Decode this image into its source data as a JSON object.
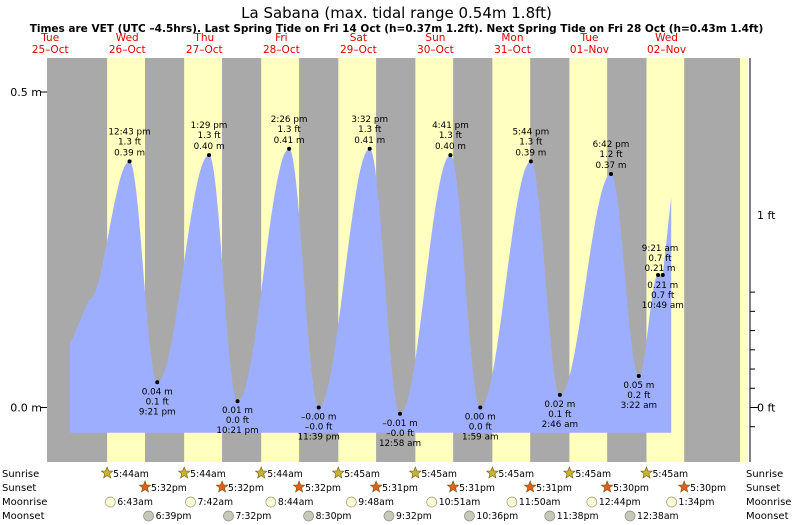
{
  "title": "La Sabana (max. tidal range 0.54m 1.8ft)",
  "subtitle": "Times are VET (UTC –4.5hrs). Last Spring Tide on Fri 14 Oct (h=0.37m 1.2ft). Next Spring Tide on Fri 28 Oct (h=0.43m 1.4ft)",
  "days": [
    {
      "dow": "Tue",
      "date": "25–Oct"
    },
    {
      "dow": "Wed",
      "date": "26–Oct"
    },
    {
      "dow": "Thu",
      "date": "27–Oct"
    },
    {
      "dow": "Fri",
      "date": "28–Oct"
    },
    {
      "dow": "Sat",
      "date": "29–Oct"
    },
    {
      "dow": "Sun",
      "date": "30–Oct"
    },
    {
      "dow": "Mon",
      "date": "31–Oct"
    },
    {
      "dow": "Tue",
      "date": "01–Nov"
    },
    {
      "dow": "Wed",
      "date": "02–Nov"
    }
  ],
  "axis_left_ticks": [
    "0.5 m",
    "0.0 m"
  ],
  "axis_right_ticks": [
    "1 ft",
    "0 ft"
  ],
  "row_labels": {
    "sunrise": "Sunrise",
    "sunset": "Sunset",
    "moonrise": "Moonrise",
    "moonset": "Moonset"
  },
  "colors": {
    "night": "#a9a9a9",
    "day": "#ffffc0",
    "tide": "#9eaefe",
    "day_label": "#e00000",
    "sun_star": "#c8b432",
    "sunset_star": "#e06020",
    "moon": "#fbfbd2"
  },
  "chart_data": {
    "type": "area",
    "title": "La Sabana (max. tidal range 0.54m 1.8ft)",
    "x_unit": "hours from 00:00 Tue 25-Oct",
    "ylim": [
      -0.07,
      0.56
    ],
    "y_unit": "m",
    "extremes": [
      {
        "t": 36.72,
        "h": 0.39,
        "time": "12:43 pm",
        "ft": "1.3 ft",
        "m": "0.39 m",
        "kind": "high"
      },
      {
        "t": 45.35,
        "h": 0.04,
        "time": "9:21 pm",
        "ft": "0.1 ft",
        "m": "0.04 m",
        "kind": "low"
      },
      {
        "t": 61.48,
        "h": 0.4,
        "time": "1:29 pm",
        "ft": "1.3 ft",
        "m": "0.40 m",
        "kind": "high"
      },
      {
        "t": 70.35,
        "h": 0.01,
        "time": "10:21 pm",
        "ft": "0.0 ft",
        "m": "0.01 m",
        "kind": "low"
      },
      {
        "t": 86.43,
        "h": 0.41,
        "time": "2:26 pm",
        "ft": "1.3 ft",
        "m": "0.41 m",
        "kind": "high"
      },
      {
        "t": 95.65,
        "h": -0.0,
        "time": "11:39 pm",
        "ft": "–0.0 ft",
        "m": "–0.00 m",
        "kind": "low"
      },
      {
        "t": 111.53,
        "h": 0.41,
        "time": "3:32 pm",
        "ft": "1.3 ft",
        "m": "0.41 m",
        "kind": "high"
      },
      {
        "t": 120.97,
        "h": -0.01,
        "time": "12:58 am",
        "ft": "–0.0 ft",
        "m": "–0.01 m",
        "kind": "low"
      },
      {
        "t": 136.68,
        "h": 0.4,
        "time": "4:41 pm",
        "ft": "1.3 ft",
        "m": "0.40 m",
        "kind": "high"
      },
      {
        "t": 145.98,
        "h": 0.0,
        "time": "1:59 am",
        "ft": "0.0 ft",
        "m": "0.00 m",
        "kind": "low"
      },
      {
        "t": 161.73,
        "h": 0.39,
        "time": "5:44 pm",
        "ft": "1.3 ft",
        "m": "0.39 m",
        "kind": "high"
      },
      {
        "t": 170.77,
        "h": 0.02,
        "time": "2:46 am",
        "ft": "0.1 ft",
        "m": "0.02 m",
        "kind": "low"
      },
      {
        "t": 186.7,
        "h": 0.37,
        "time": "6:42 pm",
        "ft": "1.2 ft",
        "m": "0.37 m",
        "kind": "high"
      },
      {
        "t": 195.37,
        "h": 0.05,
        "time": "3:22 am",
        "ft": "0.2 ft",
        "m": "0.05 m",
        "kind": "low"
      },
      {
        "t": 201.35,
        "h": 0.21,
        "time": "9:21 am",
        "ft": "0.7 ft",
        "m": "0.21 m",
        "kind": "high"
      },
      {
        "t": 202.82,
        "h": 0.21,
        "time": "10:49 am",
        "ft": "0.7 ft",
        "m": "0.21 m",
        "kind": "low"
      }
    ]
  },
  "sunrise": [
    "5:44am",
    "5:44am",
    "5:44am",
    "5:45am",
    "5:45am",
    "5:45am",
    "5:45am",
    "5:45am"
  ],
  "sunset": [
    "5:32pm",
    "5:32pm",
    "5:32pm",
    "5:31pm",
    "5:31pm",
    "5:31pm",
    "5:30pm",
    "5:30pm"
  ],
  "moonrise": [
    "6:43am",
    "7:42am",
    "8:44am",
    "9:48am",
    "10:51am",
    "11:50am",
    "12:44pm",
    "1:34pm"
  ],
  "moonset": [
    "6:39pm",
    "7:32pm",
    "8:30pm",
    "9:32pm",
    "10:36pm",
    "11:38pm",
    "12:38am"
  ]
}
